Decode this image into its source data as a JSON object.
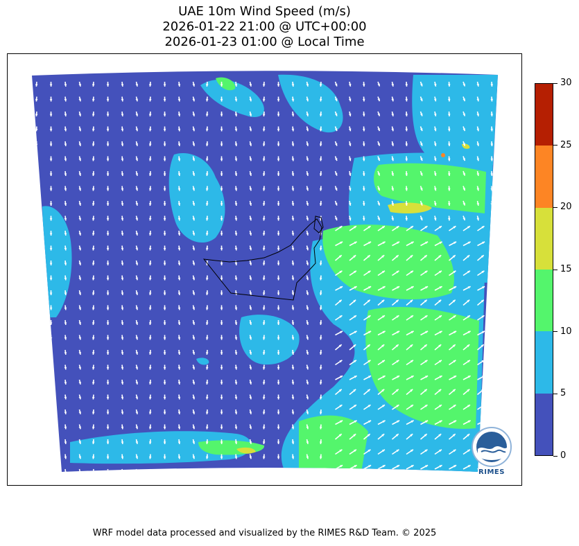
{
  "title": {
    "line1": "UAE 10m Wind Speed (m/s)",
    "line2": "2026-01-22 21:00 @ UTC+00:00",
    "line3": "2026-01-23 01:00 @ Local Time"
  },
  "colorbar": {
    "levels": [
      0,
      5,
      10,
      15,
      20,
      25,
      30
    ],
    "tick_labels": [
      "0",
      "5",
      "10",
      "15",
      "20",
      "25",
      "30"
    ],
    "colors": [
      "#4451bb",
      "#2db9e8",
      "#54f56c",
      "#d7e03a",
      "#fd8524",
      "#b51f02"
    ]
  },
  "map": {
    "wind_vector_color": "#ffffff",
    "border_color": "#000000"
  },
  "logo": {
    "text": "RIMES",
    "icon": "rimes-logo-icon"
  },
  "footer": "WRF model data processed and visualized by the RIMES R&D Team. © 2025"
}
